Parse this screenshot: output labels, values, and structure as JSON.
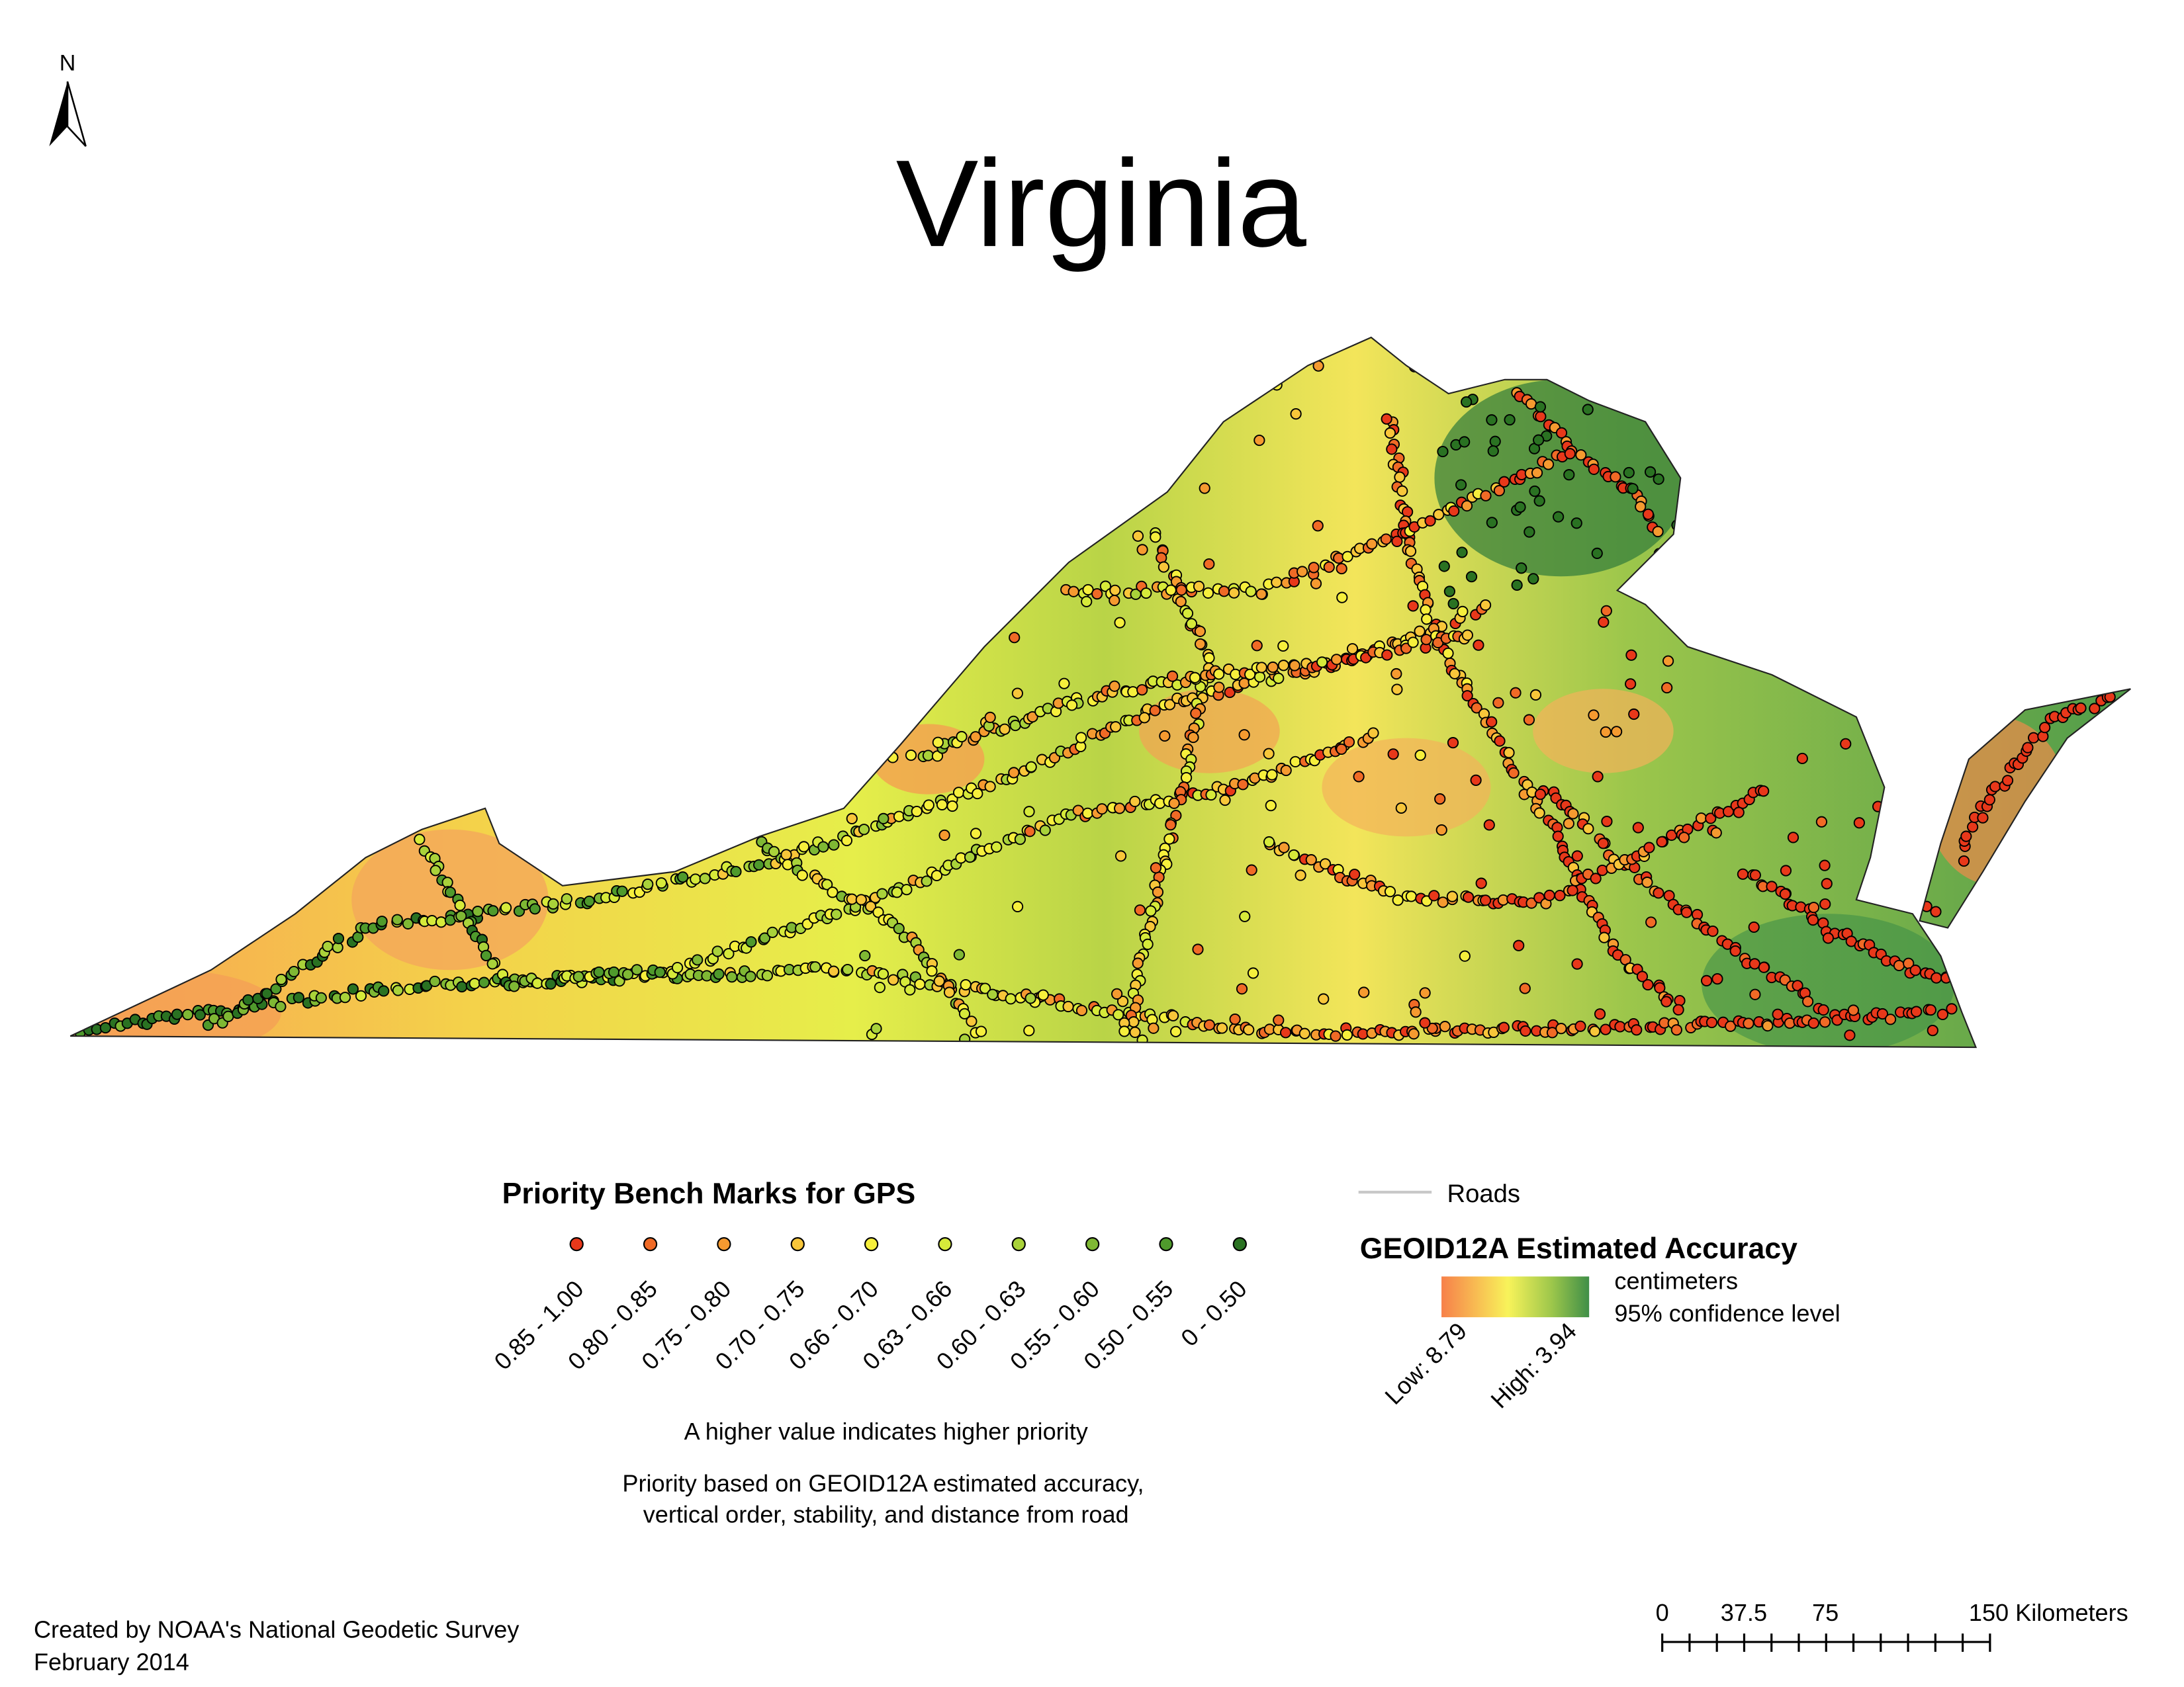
{
  "title": "Virginia",
  "north_label": "N",
  "priority_legend": {
    "title": "Priority Bench Marks for GPS",
    "classes": [
      {
        "label": "0.85 - 1.00",
        "color": "#e8381a"
      },
      {
        "label": "0.80 - 0.85",
        "color": "#f06a26"
      },
      {
        "label": "0.75 - 0.80",
        "color": "#f59a30"
      },
      {
        "label": "0.70 - 0.75",
        "color": "#f8c63a"
      },
      {
        "label": "0.66 - 0.70",
        "color": "#f6ef3c"
      },
      {
        "label": "0.63 - 0.66",
        "color": "#d6ea3a"
      },
      {
        "label": "0.60 - 0.63",
        "color": "#a9d23a"
      },
      {
        "label": "0.55 - 0.60",
        "color": "#7fb834"
      },
      {
        "label": "0.50 - 0.55",
        "color": "#4f9a2c"
      },
      {
        "label": "0 - 0.50",
        "color": "#2a7222"
      }
    ],
    "note": "A higher value indicates higher priority",
    "basis": [
      "Priority based on GEOID12A estimated accuracy,",
      "vertical order, stability, and distance from road"
    ]
  },
  "roads_label": "Roads",
  "accuracy_legend": {
    "title": "GEOID12A Estimated Accuracy",
    "units": [
      "centimeters",
      "95% confidence level"
    ],
    "low_label": "Low: 8.79",
    "high_label": "High: 3.94"
  },
  "scale_bar": {
    "labels": [
      "0",
      "37.5",
      "75",
      "150 Kilometers"
    ]
  },
  "credits": [
    "Created by NOAA's National Geodetic Survey",
    "February 2014"
  ]
}
